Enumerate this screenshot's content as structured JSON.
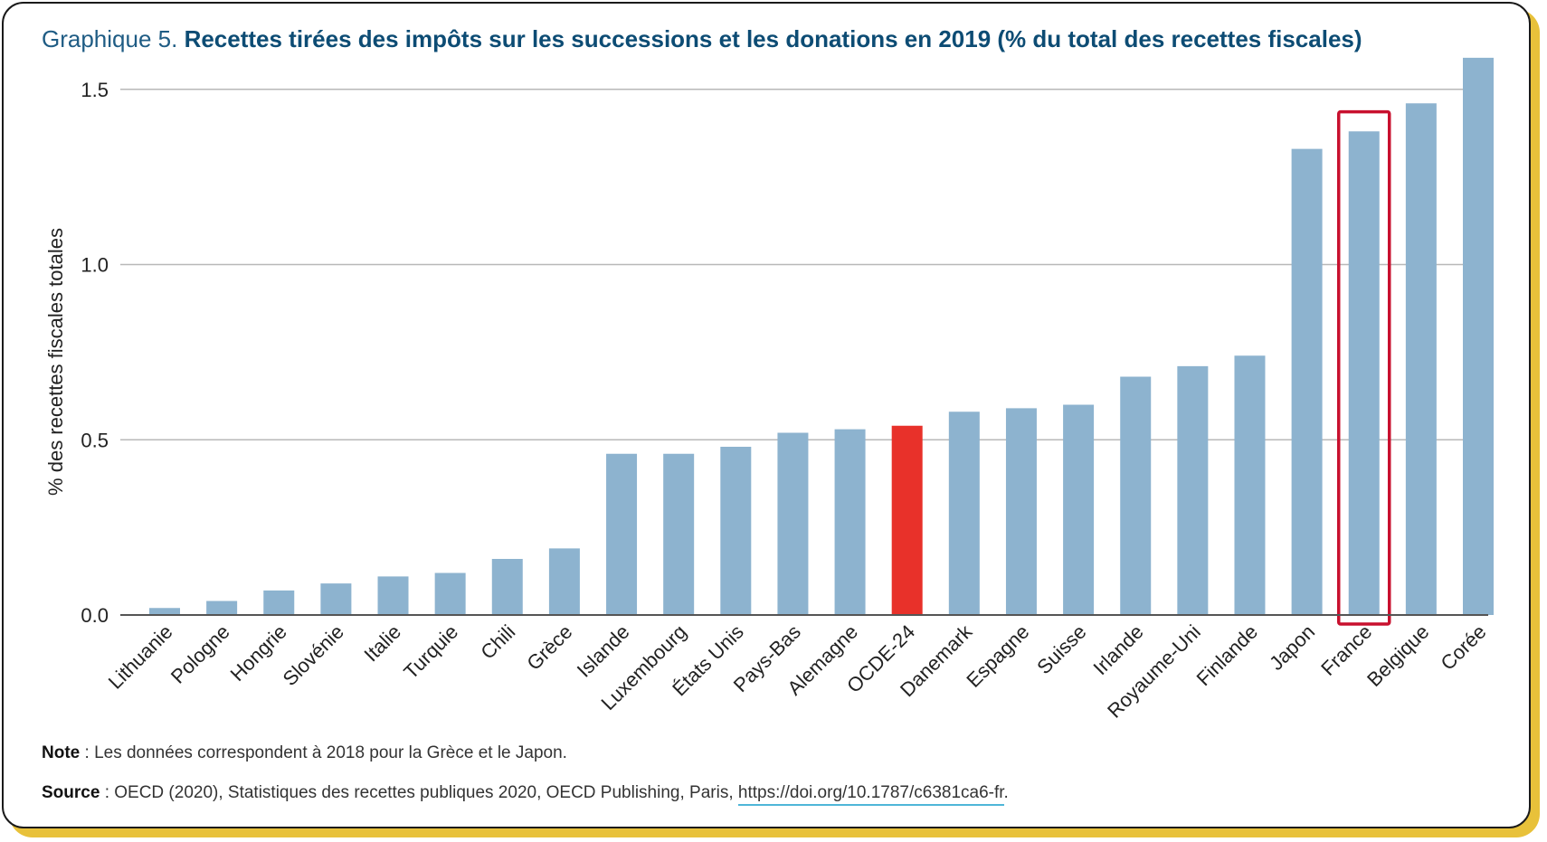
{
  "title_lead": "Graphique 5.",
  "title_main": "Recettes tirées des impôts sur les successions et les donations en 2019 (% du total des recettes fiscales)",
  "note_label": "Note",
  "note_text": " : Les données correspondent à 2018 pour la Grèce et le Japon.",
  "source_label": "Source",
  "source_text": " : OECD (2020), Statistiques des recettes publiques 2020, OECD Publishing, Paris, ",
  "source_link": "https://doi.org/10.1787/c6381ca6-fr",
  "source_end": ".",
  "colors": {
    "bar": "#8db3cf",
    "highlight_bar": "#e8312a",
    "highlight_box": "#c8102e",
    "title": "#0d4c74",
    "frame_accent": "#e8c13a"
  },
  "chart_data": {
    "type": "bar",
    "title": "Recettes tirées des impôts sur les successions et les donations en 2019 (% du total des recettes fiscales)",
    "xlabel": "",
    "ylabel": "% des recettes fiscales totales",
    "ylim": [
      0,
      1.6
    ],
    "yticks": [
      "0.0",
      "0.5",
      "1.0",
      "1.5"
    ],
    "ytick_values": [
      0,
      0.5,
      1.0,
      1.5
    ],
    "grid": true,
    "categories": [
      "Lithuanie",
      "Pologne",
      "Hongrie",
      "Slovénie",
      "Italie",
      "Turquie",
      "Chili",
      "Grèce",
      "Islande",
      "Luxembourg",
      "États Unis",
      "Pays-Bas",
      "Alemagne",
      "OCDE-24",
      "Danemark",
      "Espagne",
      "Suisse",
      "Irlande",
      "Royaume-Uni",
      "Finlande",
      "Japon",
      "France",
      "Belgique",
      "Corée"
    ],
    "values": [
      0.02,
      0.04,
      0.07,
      0.09,
      0.11,
      0.12,
      0.16,
      0.19,
      0.46,
      0.46,
      0.48,
      0.52,
      0.53,
      0.54,
      0.58,
      0.59,
      0.6,
      0.68,
      0.71,
      0.74,
      1.33,
      1.38,
      1.46,
      1.59
    ],
    "highlight_category": "OCDE-24",
    "boxed_category": "France"
  }
}
